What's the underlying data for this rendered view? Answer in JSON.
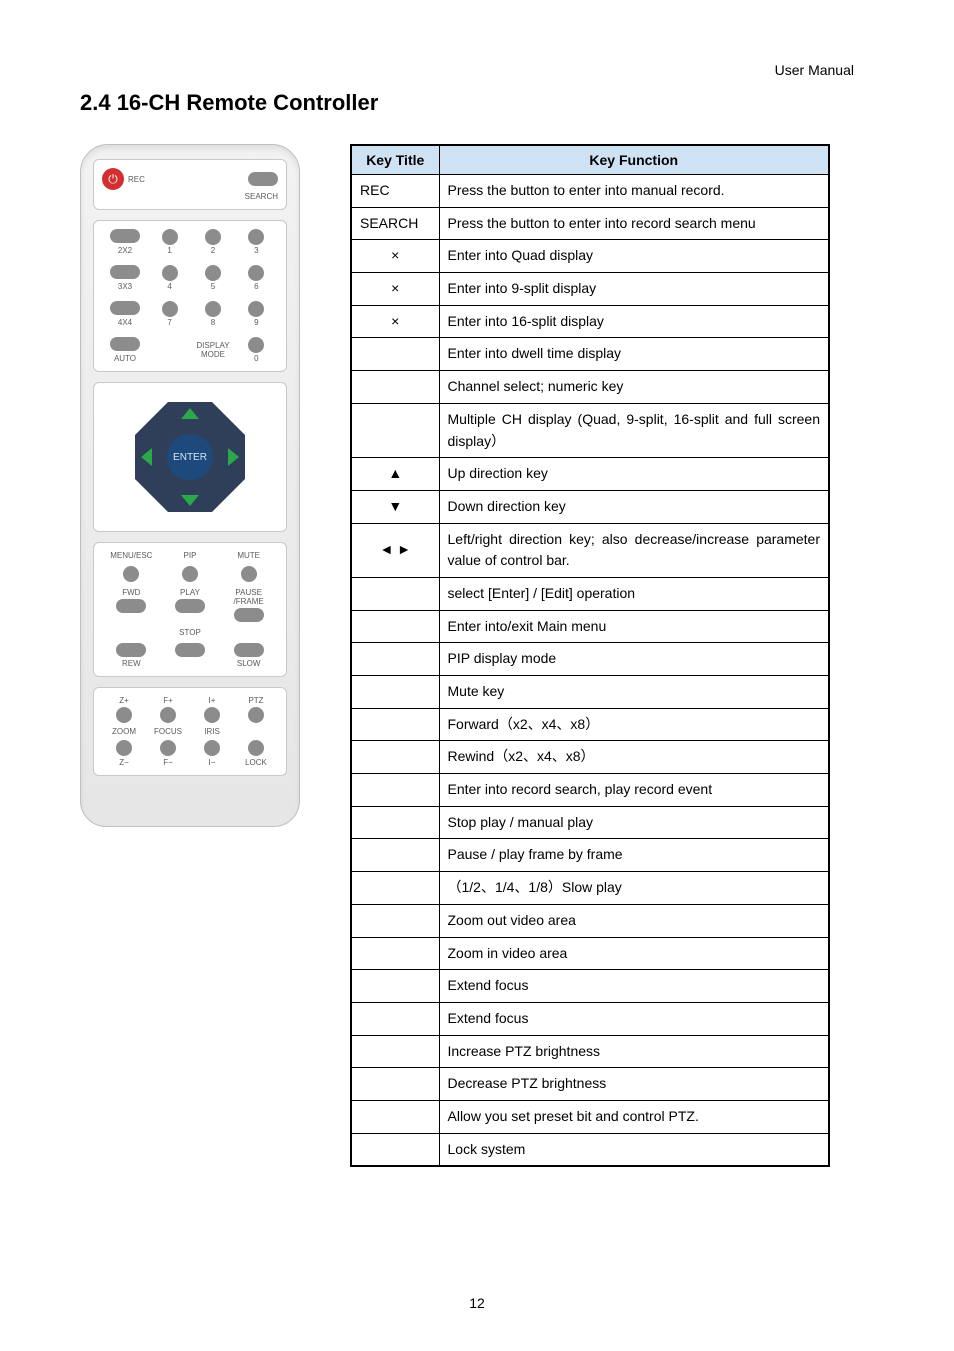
{
  "header": {
    "right": "User Manual"
  },
  "section_title": "2.4 16-CH Remote Controller",
  "page_number": "12",
  "remote": {
    "top": {
      "rec": "REC",
      "search": "SEARCH"
    },
    "rows": [
      {
        "left": "2X2",
        "n": [
          "1",
          "2",
          "3"
        ]
      },
      {
        "left": "3X3",
        "n": [
          "4",
          "5",
          "6"
        ]
      },
      {
        "left": "4X4",
        "n": [
          "7",
          "8",
          "9"
        ]
      },
      {
        "left": "AUTO",
        "n": [
          "",
          "DISPLAY\nMODE",
          "0"
        ]
      }
    ],
    "enter": "ENTER",
    "transport_top": [
      "MENU/ESC",
      "PIP",
      "MUTE"
    ],
    "transport_mid": [
      "FWD",
      "PLAY",
      "PAUSE\n/FRAME"
    ],
    "transport_low": [
      "REW",
      "STOP",
      "SLOW"
    ],
    "ptz_top": [
      "Z+",
      "F+",
      "I+",
      "PTZ"
    ],
    "ptz_mid": [
      "ZOOM",
      "FOCUS",
      "IRIS",
      ""
    ],
    "ptz_bot": [
      "Z−",
      "F−",
      "I−",
      "LOCK"
    ]
  },
  "table": {
    "headers": [
      "Key Title",
      "Key Function"
    ],
    "rows": [
      {
        "kt": "REC",
        "fn": "Press the button to enter into manual record.",
        "kt_align": "left"
      },
      {
        "kt": "SEARCH",
        "fn": "Press the button to enter into record search menu",
        "kt_align": "left"
      },
      {
        "kt": "×",
        "fn": "Enter into Quad display"
      },
      {
        "kt": "×",
        "fn": "Enter into 9-split display"
      },
      {
        "kt": "×",
        "fn": "Enter into 16-split display"
      },
      {
        "kt": "",
        "fn": "Enter into dwell time display"
      },
      {
        "kt": "",
        "fn": "Channel select; numeric key"
      },
      {
        "kt": "",
        "fn": "Multiple CH display (Quad, 9-split, 16-split and full screen display）",
        "just": true
      },
      {
        "kt": "▲",
        "fn": "Up direction key"
      },
      {
        "kt": "▼",
        "fn": "Down direction key"
      },
      {
        "kt": "◄  ►",
        "fn": "Left/right direction key; also decrease/increase parameter value of control bar.",
        "just": true
      },
      {
        "kt": "",
        "fn": "select [Enter] / [Edit] operation"
      },
      {
        "kt": "",
        "fn": "Enter into/exit Main menu"
      },
      {
        "kt": "",
        "fn": "PIP display mode"
      },
      {
        "kt": "",
        "fn": "Mute key"
      },
      {
        "kt": "",
        "fn": "Forward（x2、x4、x8）"
      },
      {
        "kt": "",
        "fn": "Rewind（x2、x4、x8）"
      },
      {
        "kt": "",
        "fn": "Enter into record search, play record event"
      },
      {
        "kt": "",
        "fn": "Stop play / manual play"
      },
      {
        "kt": "",
        "fn": "Pause / play frame by frame",
        "tall": true
      },
      {
        "kt": "",
        "fn": "（1/2、1/4、1/8）Slow play"
      },
      {
        "kt": "",
        "fn": "Zoom out video area"
      },
      {
        "kt": "",
        "fn": "Zoom in video area"
      },
      {
        "kt": "",
        "fn": "Extend focus"
      },
      {
        "kt": "",
        "fn": "Extend focus"
      },
      {
        "kt": "",
        "fn": "Increase PTZ brightness"
      },
      {
        "kt": "",
        "fn": "Decrease PTZ brightness"
      },
      {
        "kt": "",
        "fn": "Allow you set preset bit and control PTZ."
      },
      {
        "kt": "",
        "fn": "Lock system"
      }
    ]
  }
}
